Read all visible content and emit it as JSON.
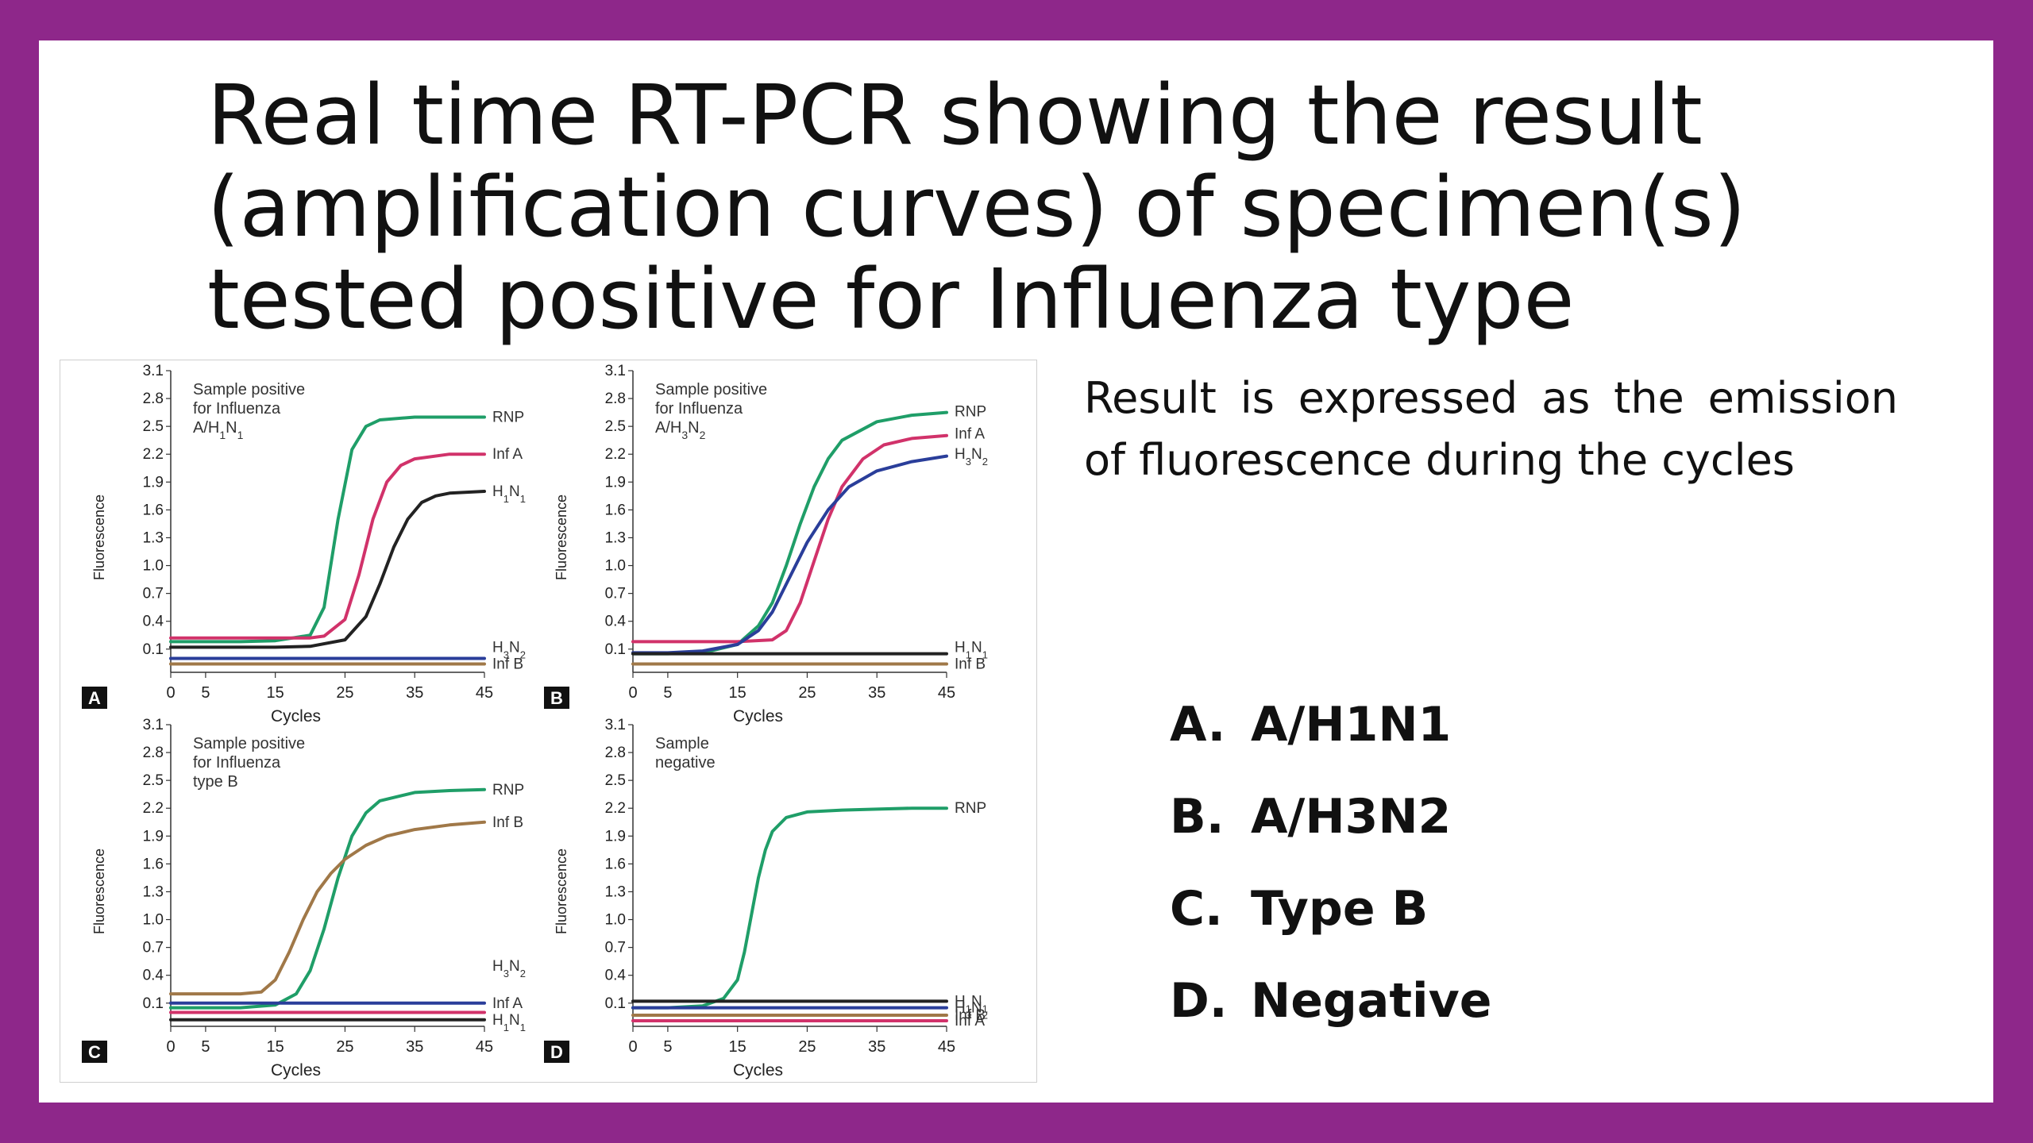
{
  "slide": {
    "title_lines": [
      "Real time RT-PCR showing the result",
      "(amplification curves) of specimen(s)",
      "tested positive for Influenza type"
    ],
    "description": "Result is expressed as the emission of fluorescence during the cycles",
    "options": [
      {
        "letter": "A.",
        "text": "A/H1N1"
      },
      {
        "letter": "B.",
        "text": "A/H3N2"
      },
      {
        "letter": "C.",
        "text": "Type B"
      },
      {
        "letter": "D.",
        "text": "Negative"
      }
    ],
    "colors": {
      "frame": "#8e278a",
      "background": "#ffffff",
      "text": "#111111"
    }
  },
  "chart_data": [
    {
      "type": "line",
      "panel": "A",
      "annotation": [
        "Sample positive",
        "for Influenza",
        "A/H1N1"
      ],
      "xlabel": "Cycles",
      "ylabel": "Fluorescence",
      "xticks": [
        0,
        5,
        15,
        25,
        35,
        45
      ],
      "yticks": [
        "0.1",
        "0.4",
        "0.7",
        "1.0",
        "1.3",
        "1.6",
        "1.9",
        "2.2",
        "2.5",
        "2.8",
        "3.1"
      ],
      "xlim": [
        0,
        45
      ],
      "ylim": [
        -0.15,
        3.1
      ],
      "series": [
        {
          "name": "RNP",
          "color": "#1f9e68",
          "label_y": 2.6,
          "x": [
            0,
            5,
            10,
            15,
            20,
            22,
            24,
            26,
            28,
            30,
            35,
            40,
            45
          ],
          "y": [
            0.18,
            0.18,
            0.18,
            0.19,
            0.25,
            0.55,
            1.5,
            2.25,
            2.5,
            2.57,
            2.6,
            2.6,
            2.6
          ]
        },
        {
          "name": "Inf A",
          "color": "#d1326a",
          "label_y": 2.2,
          "x": [
            0,
            5,
            10,
            15,
            20,
            22,
            25,
            27,
            29,
            31,
            33,
            35,
            40,
            45
          ],
          "y": [
            0.22,
            0.22,
            0.22,
            0.22,
            0.22,
            0.24,
            0.42,
            0.9,
            1.5,
            1.9,
            2.08,
            2.15,
            2.2,
            2.2
          ]
        },
        {
          "name": "H1N1",
          "color": "#222222",
          "label_y": 1.8,
          "x": [
            0,
            5,
            10,
            15,
            20,
            25,
            28,
            30,
            32,
            34,
            36,
            38,
            40,
            45
          ],
          "y": [
            0.12,
            0.12,
            0.12,
            0.12,
            0.13,
            0.2,
            0.45,
            0.8,
            1.2,
            1.5,
            1.68,
            1.75,
            1.78,
            1.8
          ]
        },
        {
          "name": "H3N2",
          "color": "#2a3e9a",
          "label_y": 0.12,
          "x": [
            0,
            45
          ],
          "y": [
            0.0,
            0.0
          ]
        },
        {
          "name": "Inf B",
          "color": "#a07848",
          "label_y": -0.06,
          "x": [
            0,
            45
          ],
          "y": [
            -0.06,
            -0.06
          ]
        }
      ]
    },
    {
      "type": "line",
      "panel": "B",
      "annotation": [
        "Sample positive",
        "for Influenza",
        "A/H3N2"
      ],
      "xlabel": "Cycles",
      "ylabel": "Fluorescence",
      "xticks": [
        0,
        5,
        15,
        25,
        35,
        45
      ],
      "yticks": [
        "0.1",
        "0.4",
        "0.7",
        "1.0",
        "1.3",
        "1.6",
        "1.9",
        "2.2",
        "2.5",
        "2.8",
        "3.1"
      ],
      "xlim": [
        0,
        45
      ],
      "ylim": [
        -0.15,
        3.1
      ],
      "series": [
        {
          "name": "RNP",
          "color": "#1f9e68",
          "label_y": 2.66,
          "x": [
            0,
            5,
            10,
            15,
            18,
            20,
            22,
            24,
            26,
            28,
            30,
            35,
            40,
            45
          ],
          "y": [
            0.05,
            0.05,
            0.06,
            0.15,
            0.35,
            0.6,
            1.0,
            1.45,
            1.85,
            2.15,
            2.35,
            2.55,
            2.62,
            2.65
          ]
        },
        {
          "name": "Inf A",
          "color": "#d1326a",
          "label_y": 2.42,
          "x": [
            0,
            5,
            10,
            15,
            20,
            22,
            24,
            26,
            28,
            30,
            33,
            36,
            40,
            45
          ],
          "y": [
            0.18,
            0.18,
            0.18,
            0.18,
            0.2,
            0.3,
            0.6,
            1.05,
            1.5,
            1.85,
            2.15,
            2.3,
            2.37,
            2.4
          ]
        },
        {
          "name": "H3N2",
          "color": "#2a3e9a",
          "label_y": 2.2,
          "x": [
            0,
            5,
            10,
            15,
            18,
            20,
            22,
            25,
            28,
            31,
            35,
            40,
            45
          ],
          "y": [
            0.06,
            0.06,
            0.08,
            0.15,
            0.3,
            0.5,
            0.8,
            1.25,
            1.6,
            1.85,
            2.02,
            2.12,
            2.18
          ]
        },
        {
          "name": "H1N1",
          "color": "#222222",
          "label_y": 0.12,
          "x": [
            0,
            45
          ],
          "y": [
            0.05,
            0.05
          ]
        },
        {
          "name": "Inf B",
          "color": "#a07848",
          "label_y": -0.06,
          "x": [
            0,
            45
          ],
          "y": [
            -0.06,
            -0.06
          ]
        }
      ]
    },
    {
      "type": "line",
      "panel": "C",
      "annotation": [
        "Sample positive",
        "for Influenza",
        "type B"
      ],
      "xlabel": "Cycles",
      "ylabel": "Fluorescence",
      "xticks": [
        0,
        5,
        15,
        25,
        35,
        45
      ],
      "yticks": [
        "0.1",
        "0.4",
        "0.7",
        "1.0",
        "1.3",
        "1.6",
        "1.9",
        "2.2",
        "2.5",
        "2.8",
        "3.1"
      ],
      "xlim": [
        0,
        45
      ],
      "ylim": [
        -0.15,
        3.1
      ],
      "series": [
        {
          "name": "RNP",
          "color": "#1f9e68",
          "label_y": 2.4,
          "x": [
            0,
            5,
            10,
            15,
            18,
            20,
            22,
            24,
            26,
            28,
            30,
            35,
            40,
            45
          ],
          "y": [
            0.05,
            0.05,
            0.05,
            0.08,
            0.2,
            0.45,
            0.9,
            1.45,
            1.9,
            2.15,
            2.28,
            2.37,
            2.39,
            2.4
          ]
        },
        {
          "name": "Inf B",
          "color": "#a07848",
          "label_y": 2.05,
          "x": [
            0,
            5,
            10,
            13,
            15,
            17,
            19,
            21,
            23,
            25,
            28,
            31,
            35,
            40,
            45
          ],
          "y": [
            0.2,
            0.2,
            0.2,
            0.22,
            0.35,
            0.65,
            1.0,
            1.3,
            1.5,
            1.65,
            1.8,
            1.9,
            1.97,
            2.02,
            2.05
          ]
        },
        {
          "name": "H3N2",
          "color": "#2a3e9a",
          "label_y": 0.5,
          "x": [
            0,
            45
          ],
          "y": [
            0.1,
            0.1
          ]
        },
        {
          "name": "Inf A",
          "color": "#d1326a",
          "label_y": 0.1,
          "x": [
            0,
            45
          ],
          "y": [
            0.0,
            0.0
          ]
        },
        {
          "name": "H1N1",
          "color": "#222222",
          "label_y": -0.08,
          "x": [
            0,
            45
          ],
          "y": [
            -0.08,
            -0.08
          ]
        }
      ]
    },
    {
      "type": "line",
      "panel": "D",
      "annotation": [
        "Sample",
        "negative"
      ],
      "xlabel": "Cycles",
      "ylabel": "Fluorescence",
      "xticks": [
        0,
        5,
        15,
        25,
        35,
        45
      ],
      "yticks": [
        "0.1",
        "0.4",
        "0.7",
        "1.0",
        "1.3",
        "1.6",
        "1.9",
        "2.2",
        "2.5",
        "2.8",
        "3.1"
      ],
      "xlim": [
        0,
        45
      ],
      "ylim": [
        -0.15,
        3.1
      ],
      "series": [
        {
          "name": "RNP",
          "color": "#1f9e68",
          "label_y": 2.2,
          "x": [
            0,
            5,
            10,
            13,
            15,
            16,
            17,
            18,
            19,
            20,
            22,
            25,
            30,
            35,
            40,
            45
          ],
          "y": [
            0.05,
            0.05,
            0.07,
            0.15,
            0.35,
            0.65,
            1.05,
            1.45,
            1.75,
            1.95,
            2.1,
            2.16,
            2.18,
            2.19,
            2.2,
            2.2
          ]
        },
        {
          "name": "H1N1",
          "color": "#222222",
          "label_y": 0.12,
          "x": [
            0,
            45
          ],
          "y": [
            0.12,
            0.12
          ]
        },
        {
          "name": "H3N2",
          "color": "#2a3e9a",
          "label_y": 0.05,
          "x": [
            0,
            45
          ],
          "y": [
            0.05,
            0.05
          ]
        },
        {
          "name": "Inf B",
          "color": "#a07848",
          "label_y": -0.03,
          "x": [
            0,
            45
          ],
          "y": [
            -0.03,
            -0.03
          ]
        },
        {
          "name": "Inf A",
          "color": "#d1326a",
          "label_y": -0.09,
          "x": [
            0,
            45
          ],
          "y": [
            -0.09,
            -0.09
          ]
        }
      ]
    }
  ]
}
